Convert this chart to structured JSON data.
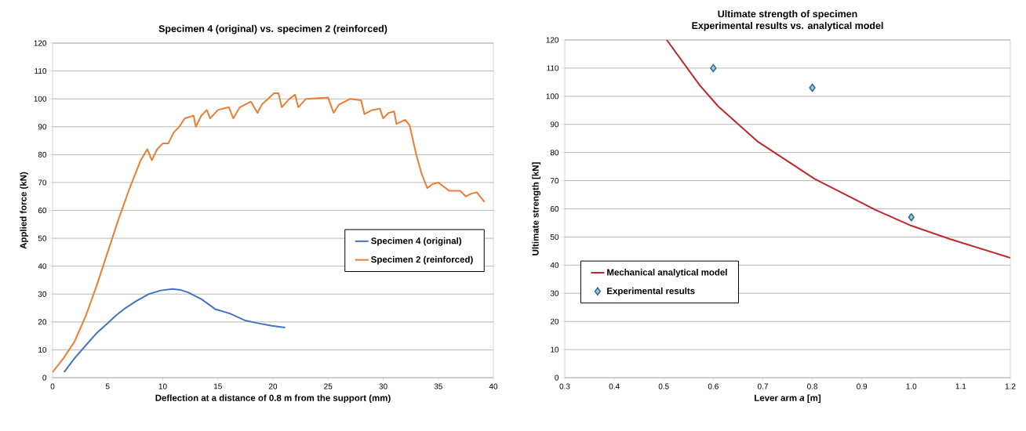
{
  "chart_data": [
    {
      "type": "line",
      "title": "Specimen 4 (original) vs. specimen 2 (reinforced)",
      "xlabel": "Deflection at a distance of 0.8 m from the support  (mm)",
      "ylabel": "Applied force (kN)",
      "xlim": [
        0,
        40
      ],
      "ylim": [
        0,
        120
      ],
      "xticks": [
        0,
        5,
        10,
        15,
        20,
        25,
        30,
        35,
        40
      ],
      "yticks": [
        0,
        10,
        20,
        30,
        40,
        50,
        60,
        70,
        80,
        90,
        100,
        110,
        120
      ],
      "grid": "y",
      "legend": "right",
      "series": [
        {
          "name": "Specimen 4 (original)",
          "color": "#4472c4",
          "x": [
            1.05,
            2,
            3.06,
            4,
            4.96,
            5.8,
            6.62,
            7.6,
            8.75,
            9.8,
            10.9,
            11.6,
            12.3,
            13.5,
            14.8,
            16.1,
            17.5,
            18.7,
            19.9,
            21.1
          ],
          "values": [
            2,
            7,
            11.8,
            16,
            19.4,
            22.5,
            25,
            27.5,
            30,
            31.3,
            31.8,
            31.5,
            30.6,
            28.2,
            24.5,
            23,
            20.5,
            19.5,
            18.6,
            18
          ]
        },
        {
          "name": "Specimen 2 (reinforced)",
          "color": "#ed7d31",
          "x": [
            0,
            1,
            2,
            3,
            4,
            5,
            6,
            7,
            8,
            8.6,
            9,
            9.5,
            10,
            10.5,
            11,
            11.5,
            12,
            12.8,
            13,
            13.5,
            14,
            14.3,
            15,
            16,
            16.4,
            17,
            18,
            18.6,
            19,
            20.1,
            20.5,
            20.8,
            21.5,
            22,
            22.3,
            23,
            25,
            25.5,
            26,
            27,
            28,
            28.3,
            29,
            29.7,
            30,
            30.5,
            31,
            31.2,
            32,
            32.4,
            33,
            33.5,
            34,
            34.5,
            35,
            35.5,
            36,
            37,
            37.5,
            38,
            38.5,
            39,
            39.2
          ],
          "values": [
            2,
            7,
            13,
            22,
            33,
            45,
            57,
            68,
            78,
            82,
            78,
            82,
            84,
            84,
            88,
            90,
            93,
            94,
            90,
            94,
            96,
            93,
            96,
            97,
            93,
            97,
            99,
            95,
            98,
            102,
            102,
            97,
            100,
            101.5,
            97,
            100,
            100.5,
            95,
            98,
            100,
            99.5,
            94.5,
            96,
            96.5,
            93,
            95,
            95.5,
            91,
            92.5,
            90.5,
            80,
            73,
            68,
            69.5,
            70,
            68.5,
            67,
            67,
            65,
            66,
            66.5,
            64,
            63
          ]
        }
      ]
    },
    {
      "type": "line",
      "title": "Ultimate strength of specimen",
      "subtitle": "Experimental results vs. analytical model",
      "xlabel": "Lever arm *a* [m]",
      "ylabel": "Ultimate strength [kN]",
      "xlim": [
        0.3,
        1.2
      ],
      "ylim": [
        0,
        120
      ],
      "xticks": [
        0.3,
        0.4,
        0.5,
        0.6,
        0.7,
        0.8,
        0.9,
        {
          "value": 1,
          "label": "1.0"
        },
        1.1,
        1.2
      ],
      "yticks": [
        0,
        10,
        20,
        30,
        40,
        50,
        60,
        70,
        80,
        90,
        100,
        110,
        120
      ],
      "grid": "y",
      "legend": "bottom left",
      "series": [
        {
          "name": "Mechanical analytical model",
          "color": "#c0282d",
          "x": [
            0.506,
            0.573,
            0.61,
            0.689,
            0.805,
            0.927,
            1.0,
            1.079,
            1.2
          ],
          "values": [
            120,
            103.8,
            96.4,
            84,
            70.6,
            59.7,
            54,
            49.2,
            42.6
          ]
        },
        {
          "name": "Experimental results",
          "type": "scatter",
          "marker": "diamond",
          "color": "#2a6a8c",
          "x": [
            0.6,
            0.8,
            1.0
          ],
          "values": [
            110,
            103,
            57
          ]
        }
      ]
    }
  ]
}
